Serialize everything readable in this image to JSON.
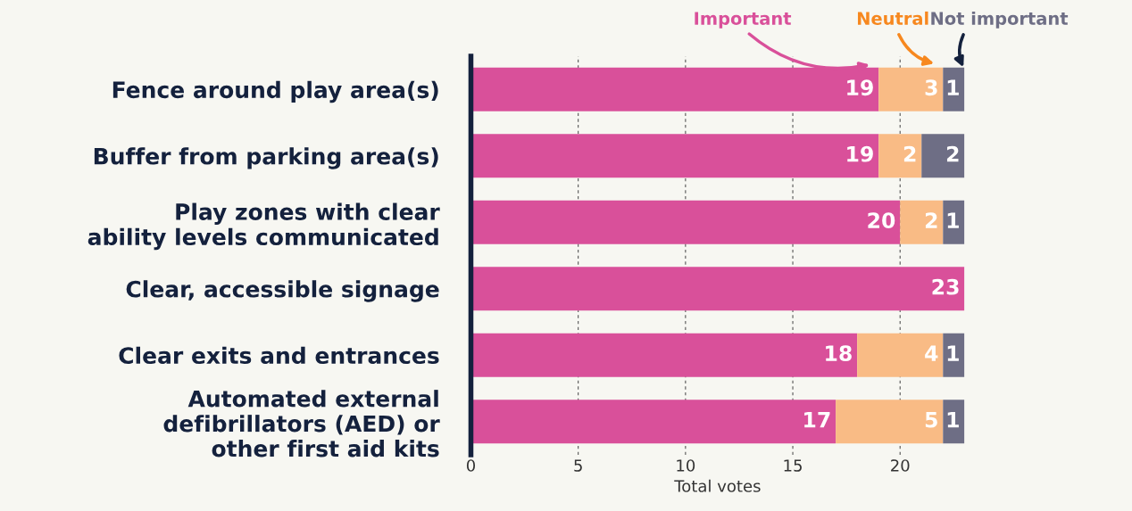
{
  "chart_data": {
    "type": "bar",
    "orientation": "horizontal",
    "stacked": true,
    "xlabel": "Total votes",
    "categories": [
      "Fence around play area(s)",
      "Buffer from parking area(s)",
      "Play zones with clear ability levels communicated",
      "Clear, accessible signage",
      "Clear exits and entrances",
      "Automated external defibrillators (AED) or other first aid kits"
    ],
    "series": [
      {
        "name": "Important",
        "color": "#d9509a",
        "values": [
          19,
          19,
          20,
          23,
          18,
          17
        ]
      },
      {
        "name": "Neutral",
        "color": "#f9bb85",
        "values": [
          3,
          2,
          2,
          null,
          4,
          5
        ]
      },
      {
        "name": "Not important",
        "color": "#6e6e85",
        "values": [
          1,
          2,
          1,
          null,
          1,
          1
        ]
      }
    ],
    "xlim": [
      0,
      23
    ],
    "xticks": [
      0,
      5,
      10,
      15,
      20
    ],
    "grid": "x",
    "data_labels": true,
    "legend": false
  }
}
